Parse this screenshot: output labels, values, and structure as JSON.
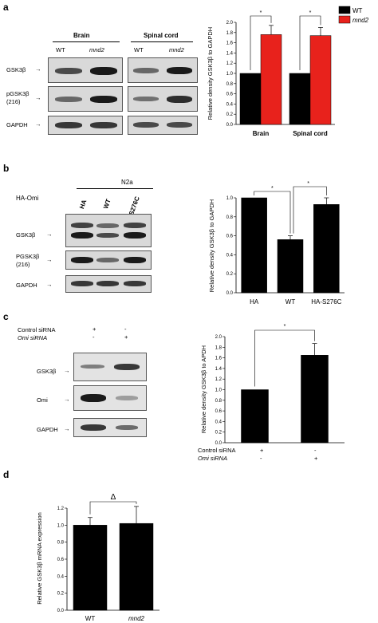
{
  "panel_a": {
    "letter": "a",
    "blot": {
      "tissues": [
        "Brain",
        "Spinal cord"
      ],
      "lane_labels": [
        "WT",
        "mnd2",
        "WT",
        "mnd2"
      ],
      "row_labels": [
        "GSK3β",
        "pGSK3β\n(216)",
        "GAPDH"
      ]
    }
  },
  "panel_b": {
    "letter": "b",
    "blot": {
      "cell_line": "N2a",
      "construct_label": "HA-Omi",
      "lane_labels": [
        "HA",
        "WT",
        "S276C"
      ],
      "row_labels": [
        "GSK3β",
        "PGSK3β\n(216)",
        "GAPDH"
      ]
    }
  },
  "panel_c": {
    "letter": "c",
    "blot": {
      "condition_labels": [
        "Control siRNA",
        "Omi siRNA"
      ],
      "control_signs": [
        "+",
        "-"
      ],
      "omi_signs": [
        "-",
        "+"
      ],
      "row_labels": [
        "GSK3β",
        "Omi",
        "GAPDH"
      ]
    }
  },
  "panel_d": {
    "letter": "d"
  },
  "chart_data": [
    {
      "id": "a",
      "type": "bar",
      "categories": [
        "Brain",
        "Spinal cord"
      ],
      "series": [
        {
          "name": "WT",
          "color": "#000000",
          "values": [
            1.0,
            1.0
          ],
          "errors": [
            0,
            0
          ]
        },
        {
          "name": "mnd2",
          "color": "#e8221c",
          "values": [
            1.76,
            1.74
          ],
          "errors": [
            0.18,
            0.16
          ]
        }
      ],
      "ylabel": "Relative density GSK3β to GAPDH",
      "ylim": [
        0,
        2.0
      ],
      "yticks": [
        "0.0",
        "0.2",
        "0.4",
        "0.6",
        "0.8",
        "1.0",
        "1.2",
        "1.4",
        "1.6",
        "1.8",
        "2.0"
      ],
      "legend_position": "top-right",
      "significance": [
        "*",
        "*"
      ]
    },
    {
      "id": "b",
      "type": "bar",
      "categories": [
        "HA",
        "WT",
        "HA-S276C"
      ],
      "values": [
        1.0,
        0.56,
        0.93
      ],
      "errors": [
        0,
        0.04,
        0.07
      ],
      "color": "#000000",
      "ylabel": "Relative density GSK3β to GAPDH",
      "ylim": [
        0,
        1.0
      ],
      "yticks": [
        "0.0",
        "0.2",
        "0.4",
        "0.6",
        "0.8",
        "1.0"
      ],
      "significance": [
        "*",
        "*"
      ]
    },
    {
      "id": "c",
      "type": "bar",
      "categories": [
        "Control",
        "Omi"
      ],
      "values": [
        1.0,
        1.65
      ],
      "errors": [
        0,
        0.22
      ],
      "color": "#000000",
      "ylabel": "Relative density GSK3β to APDH",
      "ylim": [
        0,
        2.0
      ],
      "yticks": [
        "0.0",
        "0.2",
        "0.4",
        "0.6",
        "0.8",
        "1.0",
        "1.2",
        "1.4",
        "1.6",
        "1.8",
        "2.0"
      ],
      "row_labels": [
        "Control siRNA",
        "Omi siRNA"
      ],
      "control_signs": [
        "+",
        "-"
      ],
      "omi_signs": [
        "-",
        "+"
      ],
      "significance": [
        "*"
      ]
    },
    {
      "id": "d",
      "type": "bar",
      "categories": [
        "WT",
        "mnd2"
      ],
      "values": [
        1.0,
        1.02
      ],
      "errors": [
        0.09,
        0.2
      ],
      "color": "#000000",
      "ylabel": "Relative GSK3β mRNA expression",
      "ylim": [
        0,
        1.2
      ],
      "yticks": [
        "0.0",
        "0.2",
        "0.4",
        "0.6",
        "0.8",
        "1.0",
        "1.2"
      ],
      "significance": [
        "Δ"
      ]
    }
  ]
}
